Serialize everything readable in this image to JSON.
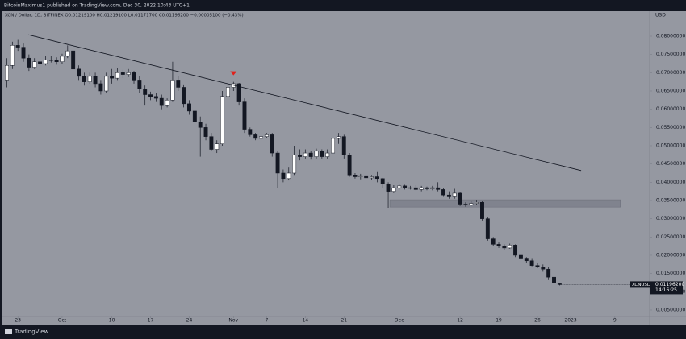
{
  "header": {
    "published": "BitcoinMaximus1 published on TradingView.com, Dec 30, 2022 10:43 UTC+1",
    "legend": "XCN / Dollar, 1D, BITFINEX  O0.01219100 H0.01219100 L0.01171700 C0.01196200 −0.00005100 (−0.43%)"
  },
  "footer": {
    "brand": "TradingView"
  },
  "chart_data": {
    "type": "candlestick",
    "y_axis_label": "USD",
    "up_color": "#ffffff",
    "down_color": "#131722",
    "price_tag": {
      "symbol": "XCNUSD",
      "price": "0.01196200",
      "countdown": "14:16:25"
    },
    "xlim": [
      -0.8,
      116.3
    ],
    "xticks": [
      {
        "value": 2,
        "label": "23"
      },
      {
        "value": 10,
        "label": "Oct"
      },
      {
        "value": 19,
        "label": "10"
      },
      {
        "value": 26,
        "label": "17"
      },
      {
        "value": 33,
        "label": "24"
      },
      {
        "value": 41,
        "label": "Nov"
      },
      {
        "value": 47,
        "label": "7"
      },
      {
        "value": 54,
        "label": "14"
      },
      {
        "value": 61,
        "label": "21"
      },
      {
        "value": 71,
        "label": "Dec"
      },
      {
        "value": 82,
        "label": "12"
      },
      {
        "value": 89,
        "label": "19"
      },
      {
        "value": 96,
        "label": "26"
      },
      {
        "value": 102,
        "label": "2023"
      },
      {
        "value": 110,
        "label": "9"
      }
    ],
    "ylim": [
      0.00323,
      0.08684
    ],
    "yticks": [
      {
        "value": 0.005,
        "label": "0.00500000"
      },
      {
        "value": 0.01,
        "label": "0.01000000"
      },
      {
        "value": 0.015,
        "label": "0.01500000"
      },
      {
        "value": 0.02,
        "label": "0.02000000"
      },
      {
        "value": 0.025,
        "label": "0.02500000"
      },
      {
        "value": 0.03,
        "label": "0.03000000"
      },
      {
        "value": 0.035,
        "label": "0.03500000"
      },
      {
        "value": 0.04,
        "label": "0.04000000"
      },
      {
        "value": 0.045,
        "label": "0.04500000"
      },
      {
        "value": 0.05,
        "label": "0.05000000"
      },
      {
        "value": 0.055,
        "label": "0.05500000"
      },
      {
        "value": 0.06,
        "label": "0.06000000"
      },
      {
        "value": 0.065,
        "label": "0.06500000"
      },
      {
        "value": 0.07,
        "label": "0.07000000"
      },
      {
        "value": 0.075,
        "label": "0.07500000"
      },
      {
        "value": 0.08,
        "label": "0.08000000"
      }
    ],
    "trendline": {
      "x": [
        3.9,
        103.9
      ],
      "y": [
        0.0804,
        0.0432
      ]
    },
    "zone": {
      "x": [
        69.3,
        111
      ],
      "y": [
        0.0332,
        0.0352
      ]
    },
    "signal": {
      "x": 41,
      "y": 0.0695
    },
    "ohlc": [
      [
        0.068,
        0.074,
        0.066,
        0.072
      ],
      [
        0.072,
        0.0785,
        0.071,
        0.0775
      ],
      [
        0.0775,
        0.079,
        0.076,
        0.077
      ],
      [
        0.077,
        0.078,
        0.073,
        0.074
      ],
      [
        0.074,
        0.075,
        0.0705,
        0.0715
      ],
      [
        0.0715,
        0.074,
        0.071,
        0.073
      ],
      [
        0.073,
        0.074,
        0.0715,
        0.0725
      ],
      [
        0.0725,
        0.0745,
        0.072,
        0.0735
      ],
      [
        0.0735,
        0.0745,
        0.0728,
        0.0735
      ],
      [
        0.0735,
        0.0742,
        0.0722,
        0.073
      ],
      [
        0.073,
        0.0752,
        0.0725,
        0.0745
      ],
      [
        0.0745,
        0.0775,
        0.074,
        0.076
      ],
      [
        0.076,
        0.0765,
        0.07,
        0.071
      ],
      [
        0.071,
        0.072,
        0.068,
        0.069
      ],
      [
        0.069,
        0.07,
        0.0665,
        0.0675
      ],
      [
        0.0675,
        0.07,
        0.067,
        0.069
      ],
      [
        0.069,
        0.07,
        0.066,
        0.067
      ],
      [
        0.067,
        0.068,
        0.064,
        0.065
      ],
      [
        0.065,
        0.07,
        0.0645,
        0.069
      ],
      [
        0.069,
        0.071,
        0.067,
        0.0685
      ],
      [
        0.0685,
        0.0712,
        0.068,
        0.07
      ],
      [
        0.07,
        0.0708,
        0.0685,
        0.0695
      ],
      [
        0.0695,
        0.071,
        0.0688,
        0.07
      ],
      [
        0.07,
        0.0705,
        0.067,
        0.068
      ],
      [
        0.068,
        0.069,
        0.0645,
        0.0655
      ],
      [
        0.0655,
        0.0665,
        0.061,
        0.064
      ],
      [
        0.064,
        0.0648,
        0.0625,
        0.0635
      ],
      [
        0.0635,
        0.0645,
        0.062,
        0.063
      ],
      [
        0.063,
        0.064,
        0.06,
        0.061
      ],
      [
        0.061,
        0.063,
        0.0605,
        0.0625
      ],
      [
        0.0625,
        0.073,
        0.062,
        0.068
      ],
      [
        0.068,
        0.069,
        0.065,
        0.066
      ],
      [
        0.066,
        0.0668,
        0.0605,
        0.0615
      ],
      [
        0.0615,
        0.0625,
        0.0585,
        0.0595
      ],
      [
        0.0595,
        0.0605,
        0.056,
        0.0565
      ],
      [
        0.0565,
        0.058,
        0.047,
        0.055
      ],
      [
        0.055,
        0.056,
        0.0515,
        0.0525
      ],
      [
        0.0525,
        0.0535,
        0.0485,
        0.049
      ],
      [
        0.049,
        0.0515,
        0.048,
        0.0505
      ],
      [
        0.0505,
        0.065,
        0.05,
        0.0635
      ],
      [
        0.0635,
        0.0675,
        0.063,
        0.066
      ],
      [
        0.066,
        0.0675,
        0.065,
        0.067
      ],
      [
        0.067,
        0.0672,
        0.061,
        0.062
      ],
      [
        0.062,
        0.063,
        0.0535,
        0.0545
      ],
      [
        0.0545,
        0.055,
        0.0525,
        0.053
      ],
      [
        0.053,
        0.0535,
        0.0515,
        0.052
      ],
      [
        0.052,
        0.053,
        0.0515,
        0.0525
      ],
      [
        0.0525,
        0.0535,
        0.052,
        0.053
      ],
      [
        0.053,
        0.0535,
        0.047,
        0.048
      ],
      [
        0.048,
        0.0485,
        0.0385,
        0.0425
      ],
      [
        0.0425,
        0.0435,
        0.04,
        0.041
      ],
      [
        0.041,
        0.044,
        0.0405,
        0.0425
      ],
      [
        0.0425,
        0.05,
        0.042,
        0.0475
      ],
      [
        0.0475,
        0.049,
        0.046,
        0.047
      ],
      [
        0.047,
        0.049,
        0.0465,
        0.048
      ],
      [
        0.048,
        0.0485,
        0.0462,
        0.047
      ],
      [
        0.047,
        0.0492,
        0.0465,
        0.0485
      ],
      [
        0.0485,
        0.049,
        0.0465,
        0.047
      ],
      [
        0.047,
        0.049,
        0.0465,
        0.048
      ],
      [
        0.048,
        0.053,
        0.0475,
        0.052
      ],
      [
        0.052,
        0.0535,
        0.0505,
        0.0525
      ],
      [
        0.0525,
        0.053,
        0.0465,
        0.0475
      ],
      [
        0.0475,
        0.048,
        0.0415,
        0.042
      ],
      [
        0.042,
        0.0425,
        0.041,
        0.0415
      ],
      [
        0.0415,
        0.0423,
        0.0408,
        0.0418
      ],
      [
        0.0418,
        0.0422,
        0.0408,
        0.0412
      ],
      [
        0.0412,
        0.042,
        0.0405,
        0.0415
      ],
      [
        0.0415,
        0.043,
        0.04,
        0.041
      ],
      [
        0.041,
        0.0412,
        0.0385,
        0.0395
      ],
      [
        0.0395,
        0.04,
        0.033,
        0.0375
      ],
      [
        0.0375,
        0.0392,
        0.037,
        0.0385
      ],
      [
        0.0385,
        0.0395,
        0.038,
        0.039
      ],
      [
        0.039,
        0.0393,
        0.038,
        0.0385
      ],
      [
        0.0385,
        0.039,
        0.038,
        0.0385
      ],
      [
        0.0385,
        0.0392,
        0.0378,
        0.038
      ],
      [
        0.038,
        0.039,
        0.0375,
        0.0385
      ],
      [
        0.0385,
        0.0388,
        0.0378,
        0.0382
      ],
      [
        0.0382,
        0.039,
        0.0378,
        0.0385
      ],
      [
        0.0385,
        0.04,
        0.0375,
        0.038
      ],
      [
        0.038,
        0.0385,
        0.036,
        0.0365
      ],
      [
        0.0365,
        0.0375,
        0.0355,
        0.036
      ],
      [
        0.036,
        0.0382,
        0.0355,
        0.037
      ],
      [
        0.037,
        0.0372,
        0.0335,
        0.034
      ],
      [
        0.034,
        0.0345,
        0.0333,
        0.0338
      ],
      [
        0.0338,
        0.0348,
        0.0335,
        0.0342
      ],
      [
        0.0342,
        0.0352,
        0.0338,
        0.0345
      ],
      [
        0.0345,
        0.0348,
        0.0295,
        0.03
      ],
      [
        0.03,
        0.0305,
        0.024,
        0.0245
      ],
      [
        0.0245,
        0.025,
        0.0225,
        0.023
      ],
      [
        0.023,
        0.0235,
        0.022,
        0.0225
      ],
      [
        0.0225,
        0.023,
        0.0215,
        0.022
      ],
      [
        0.022,
        0.0232,
        0.0218,
        0.0228
      ],
      [
        0.0228,
        0.023,
        0.0195,
        0.02
      ],
      [
        0.02,
        0.0205,
        0.0185,
        0.019
      ],
      [
        0.019,
        0.0195,
        0.018,
        0.0185
      ],
      [
        0.0185,
        0.019,
        0.017,
        0.0172
      ],
      [
        0.0172,
        0.0178,
        0.0165,
        0.0168
      ],
      [
        0.0168,
        0.0175,
        0.0155,
        0.0162
      ],
      [
        0.0162,
        0.0168,
        0.0132,
        0.014
      ],
      [
        0.014,
        0.015,
        0.0122,
        0.0125
      ],
      [
        0.012191,
        0.012191,
        0.011717,
        0.011962
      ]
    ]
  }
}
